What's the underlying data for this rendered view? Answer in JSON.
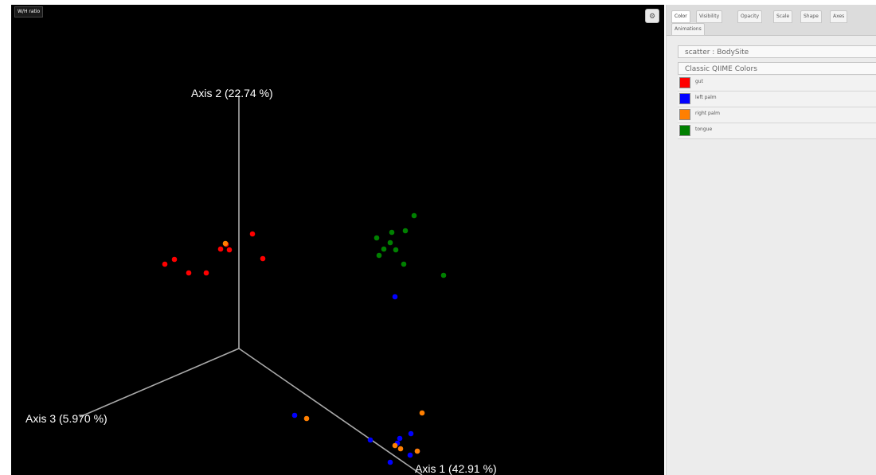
{
  "plot": {
    "view_badge": "W/H ratio",
    "settings_icon": "⚙",
    "axis_labels": {
      "axis1": "Axis 1 (42.91 %)",
      "axis2": "Axis 2 (22.74 %)",
      "axis3": "Axis 3 (5.970 %)"
    },
    "colors": {
      "background": "#000000",
      "axes": "#aaaaaa"
    },
    "point_groups": [
      {
        "category": "gut",
        "color": "#ff0000",
        "count": 9
      },
      {
        "category": "left palm",
        "color": "#0000ff",
        "count": 9
      },
      {
        "category": "right palm",
        "color": "#ff7f00",
        "count": 6
      },
      {
        "category": "tongue",
        "color": "#008000",
        "count": 10
      }
    ]
  },
  "panel": {
    "tabs": [
      "Color",
      "Visibility",
      "Opacity",
      "Scale",
      "Shape",
      "Axes",
      "Animations"
    ],
    "active_tab": "Color",
    "category_select": {
      "value": "scatter : BodySite"
    },
    "colormap_select": {
      "value": "Classic QIIME Colors"
    },
    "color_items": [
      {
        "label": "gut",
        "color": "#ff0000"
      },
      {
        "label": "left palm",
        "color": "#0000ff"
      },
      {
        "label": "right palm",
        "color": "#ff7f00"
      },
      {
        "label": "tongue",
        "color": "#008000"
      }
    ]
  }
}
